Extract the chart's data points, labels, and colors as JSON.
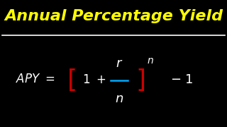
{
  "title": "Annual Percentage Yield",
  "title_color": "#FFFF00",
  "bg_color": "#000000",
  "formula_color": "#FFFFFF",
  "bracket_color": "#CC0000",
  "fraction_line_color": "#00AAFF",
  "figsize": [
    3.2,
    1.8
  ],
  "dpi": 100
}
